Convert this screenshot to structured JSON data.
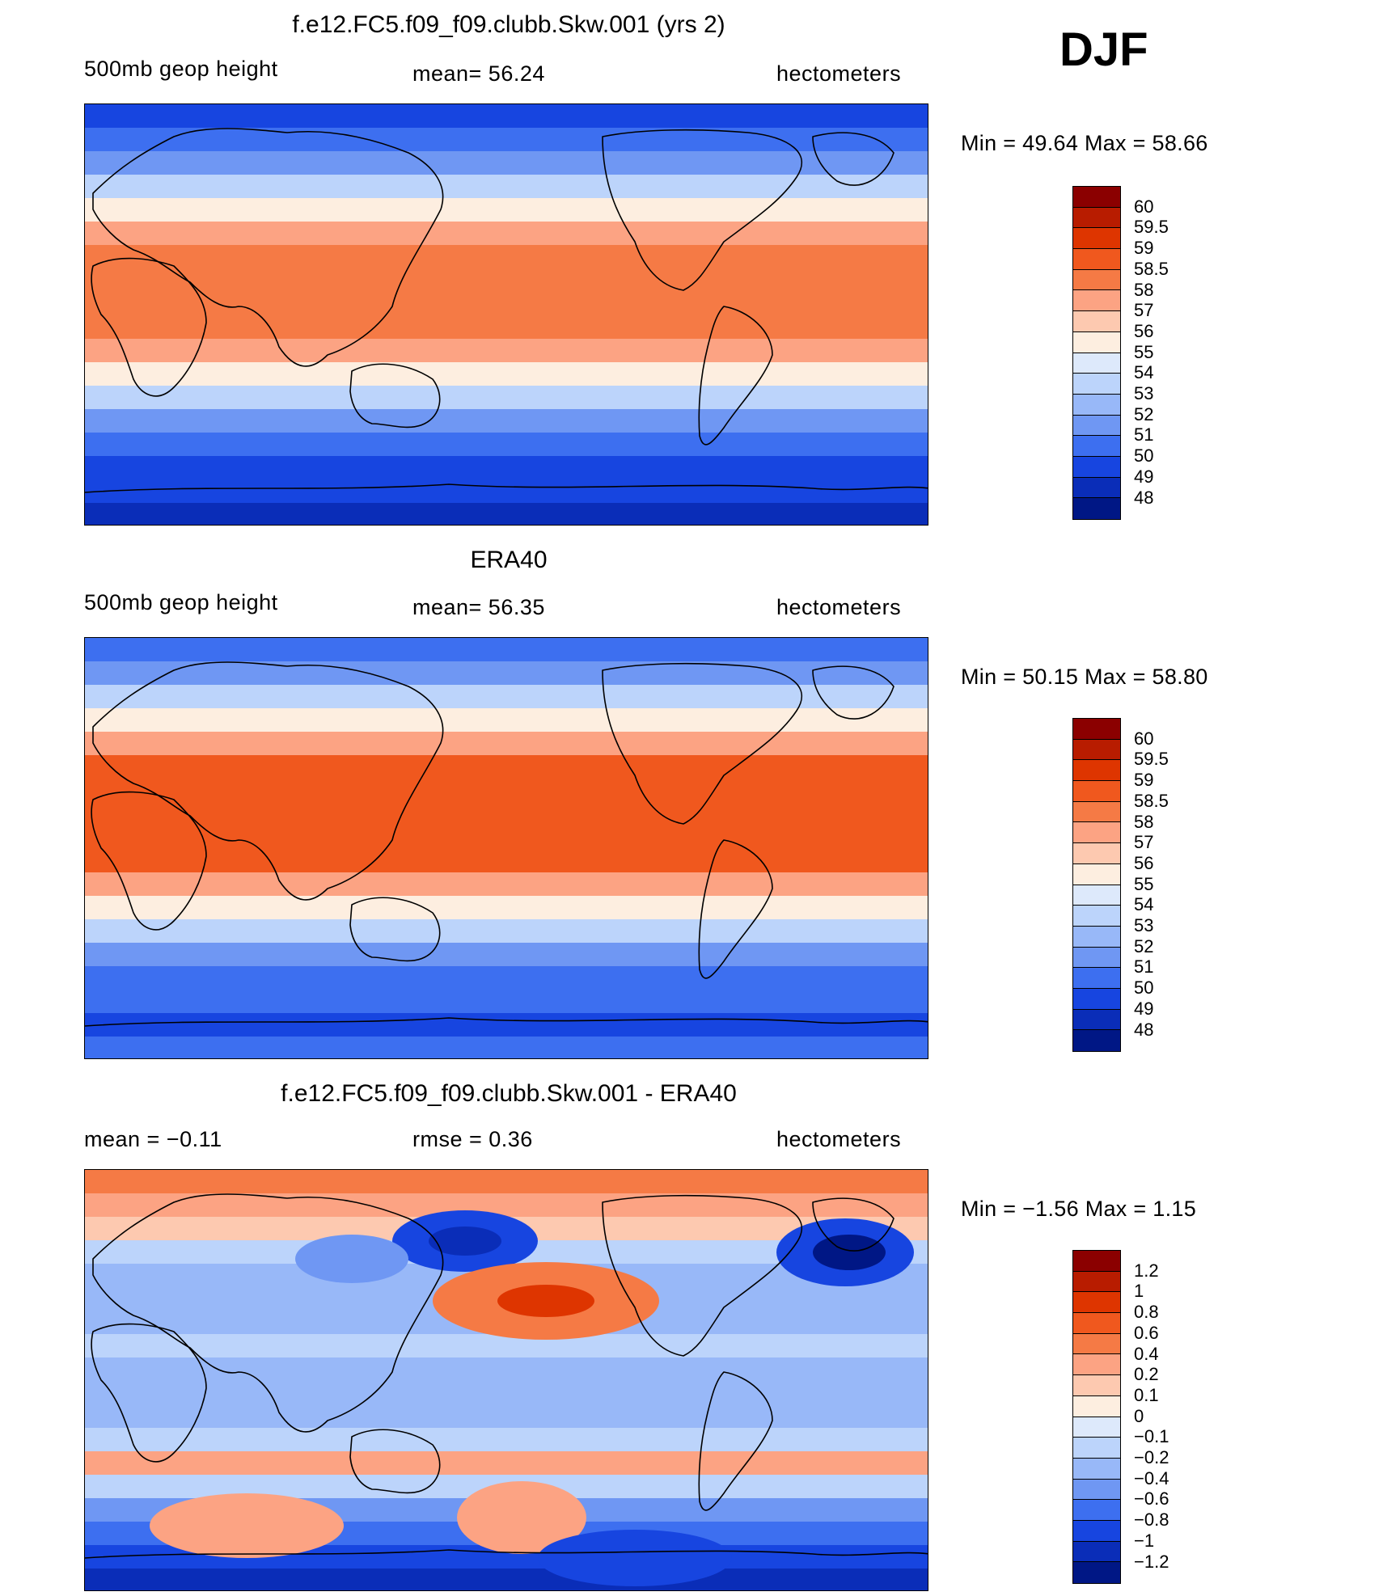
{
  "season": "DJF",
  "panels": [
    {
      "title": "f.e12.FC5.f09_f09.clubb.Skw.001 (yrs 2)",
      "left_label": "500mb  geop  height",
      "center_label": "mean=   56.24",
      "right_label": "hectometers",
      "minmax": "Min =    49.64  Max =    58.66",
      "colorbar": {
        "labels": [
          "60",
          "59.5",
          "59",
          "58.5",
          "58",
          "57",
          "56",
          "55",
          "54",
          "53",
          "52",
          "51",
          "50",
          "49",
          "48"
        ],
        "colors": [
          "#8b0000",
          "#b81c00",
          "#de3500",
          "#f0581e",
          "#f57a45",
          "#fca383",
          "#fdc9b0",
          "#fdeee0",
          "#dde9fb",
          "#bcd4fb",
          "#98b8f8",
          "#6f97f3",
          "#3d6ff0",
          "#1745e0",
          "#0a2db8",
          "#001785"
        ]
      },
      "bands": [
        "#1745e0",
        "#3d6ff0",
        "#6f97f3",
        "#bcd4fb",
        "#fdeee0",
        "#fca383",
        "#f57a45",
        "#f57a45",
        "#f57a45",
        "#f57a45",
        "#fca383",
        "#fdeee0",
        "#bcd4fb",
        "#6f97f3",
        "#3d6ff0",
        "#1745e0",
        "#1745e0",
        "#0a2db8"
      ]
    },
    {
      "title": "ERA40",
      "left_label": "500mb  geop  height",
      "center_label": "mean=   56.35",
      "right_label": "hectometers",
      "minmax": "Min =    50.15  Max =    58.80",
      "colorbar": {
        "labels": [
          "60",
          "59.5",
          "59",
          "58.5",
          "58",
          "57",
          "56",
          "55",
          "54",
          "53",
          "52",
          "51",
          "50",
          "49",
          "48"
        ],
        "colors": [
          "#8b0000",
          "#b81c00",
          "#de3500",
          "#f0581e",
          "#f57a45",
          "#fca383",
          "#fdc9b0",
          "#fdeee0",
          "#dde9fb",
          "#bcd4fb",
          "#98b8f8",
          "#6f97f3",
          "#3d6ff0",
          "#1745e0",
          "#0a2db8",
          "#001785"
        ]
      },
      "bands": [
        "#3d6ff0",
        "#6f97f3",
        "#bcd4fb",
        "#fdeee0",
        "#fca383",
        "#f0581e",
        "#f0581e",
        "#f0581e",
        "#f0581e",
        "#f0581e",
        "#fca383",
        "#fdeee0",
        "#bcd4fb",
        "#6f97f3",
        "#3d6ff0",
        "#3d6ff0",
        "#1745e0",
        "#3d6ff0"
      ]
    },
    {
      "title": "f.e12.FC5.f09_f09.clubb.Skw.001 - ERA40",
      "left_label": "mean  =    −0.11",
      "center_label": "rmse  =     0.36",
      "right_label": "hectometers",
      "minmax": "Min =    −1.56  Max =     1.15",
      "colorbar": {
        "labels": [
          "1.2",
          "1",
          "0.8",
          "0.6",
          "0.4",
          "0.2",
          "0.1",
          "0",
          "−0.1",
          "−0.2",
          "−0.4",
          "−0.6",
          "−0.8",
          "−1",
          "−1.2"
        ],
        "colors": [
          "#8b0000",
          "#b81c00",
          "#de3500",
          "#f0581e",
          "#f57a45",
          "#fca383",
          "#fdc9b0",
          "#fdeee0",
          "#dde9fb",
          "#bcd4fb",
          "#98b8f8",
          "#6f97f3",
          "#3d6ff0",
          "#1745e0",
          "#0a2db8",
          "#001785"
        ]
      },
      "bands": [
        "#f57a45",
        "#fca383",
        "#fdc9b0",
        "#bcd4fb",
        "#98b8f8",
        "#98b8f8",
        "#98b8f8",
        "#bcd4fb",
        "#98b8f8",
        "#98b8f8",
        "#98b8f8",
        "#bcd4fb",
        "#fca383",
        "#bcd4fb",
        "#6f97f3",
        "#3d6ff0",
        "#1745e0",
        "#0a2db8"
      ]
    }
  ]
}
